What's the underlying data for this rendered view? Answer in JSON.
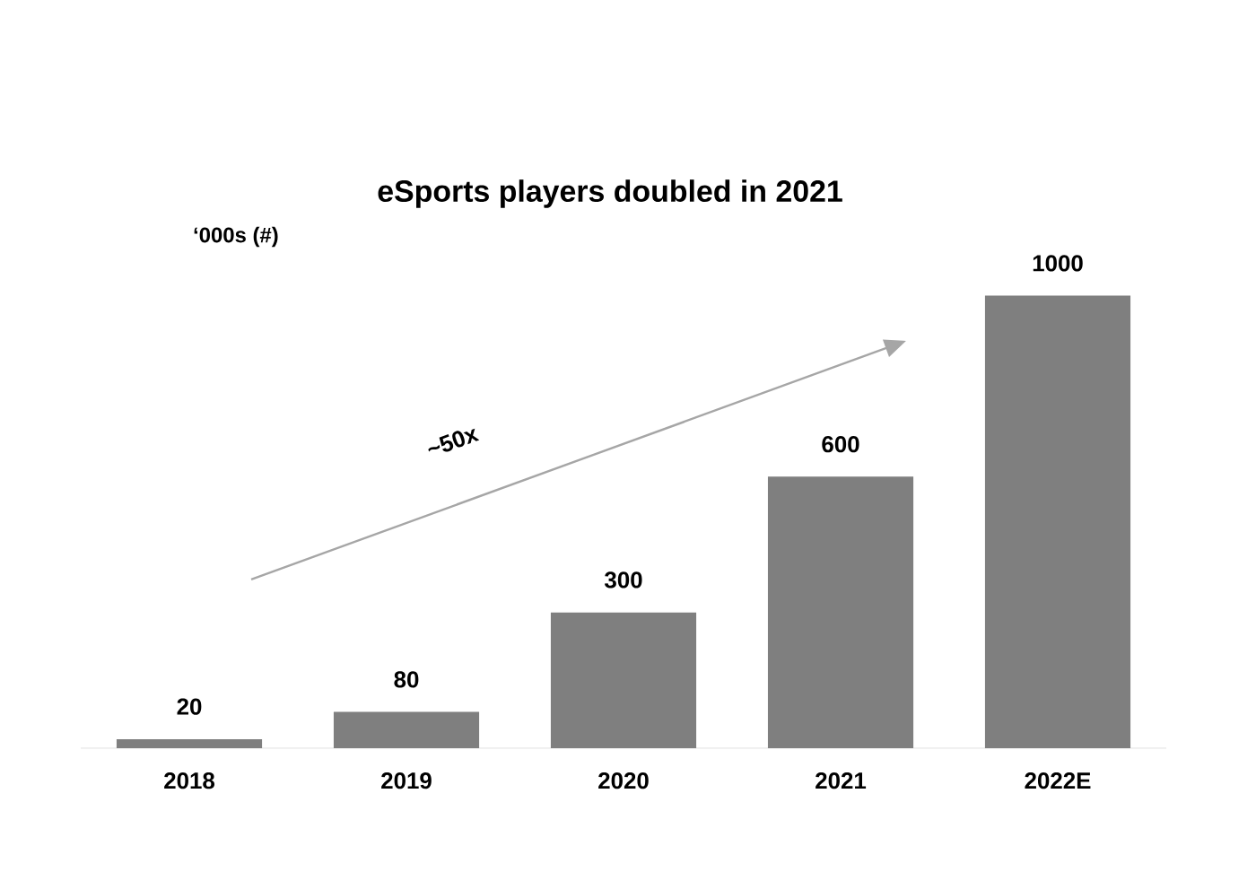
{
  "chart_data": {
    "type": "bar",
    "title": "eSports players doubled in 2021",
    "subtitle": "‘000s (#)",
    "annotations": [
      "~50x"
    ],
    "categories": [
      "2018",
      "2019",
      "2020",
      "2021",
      "2022E"
    ],
    "values": [
      20,
      80,
      300,
      600,
      1000
    ],
    "value_labels": [
      "20",
      "80",
      "300",
      "600",
      "1000"
    ],
    "color": "#7f7f7f"
  }
}
